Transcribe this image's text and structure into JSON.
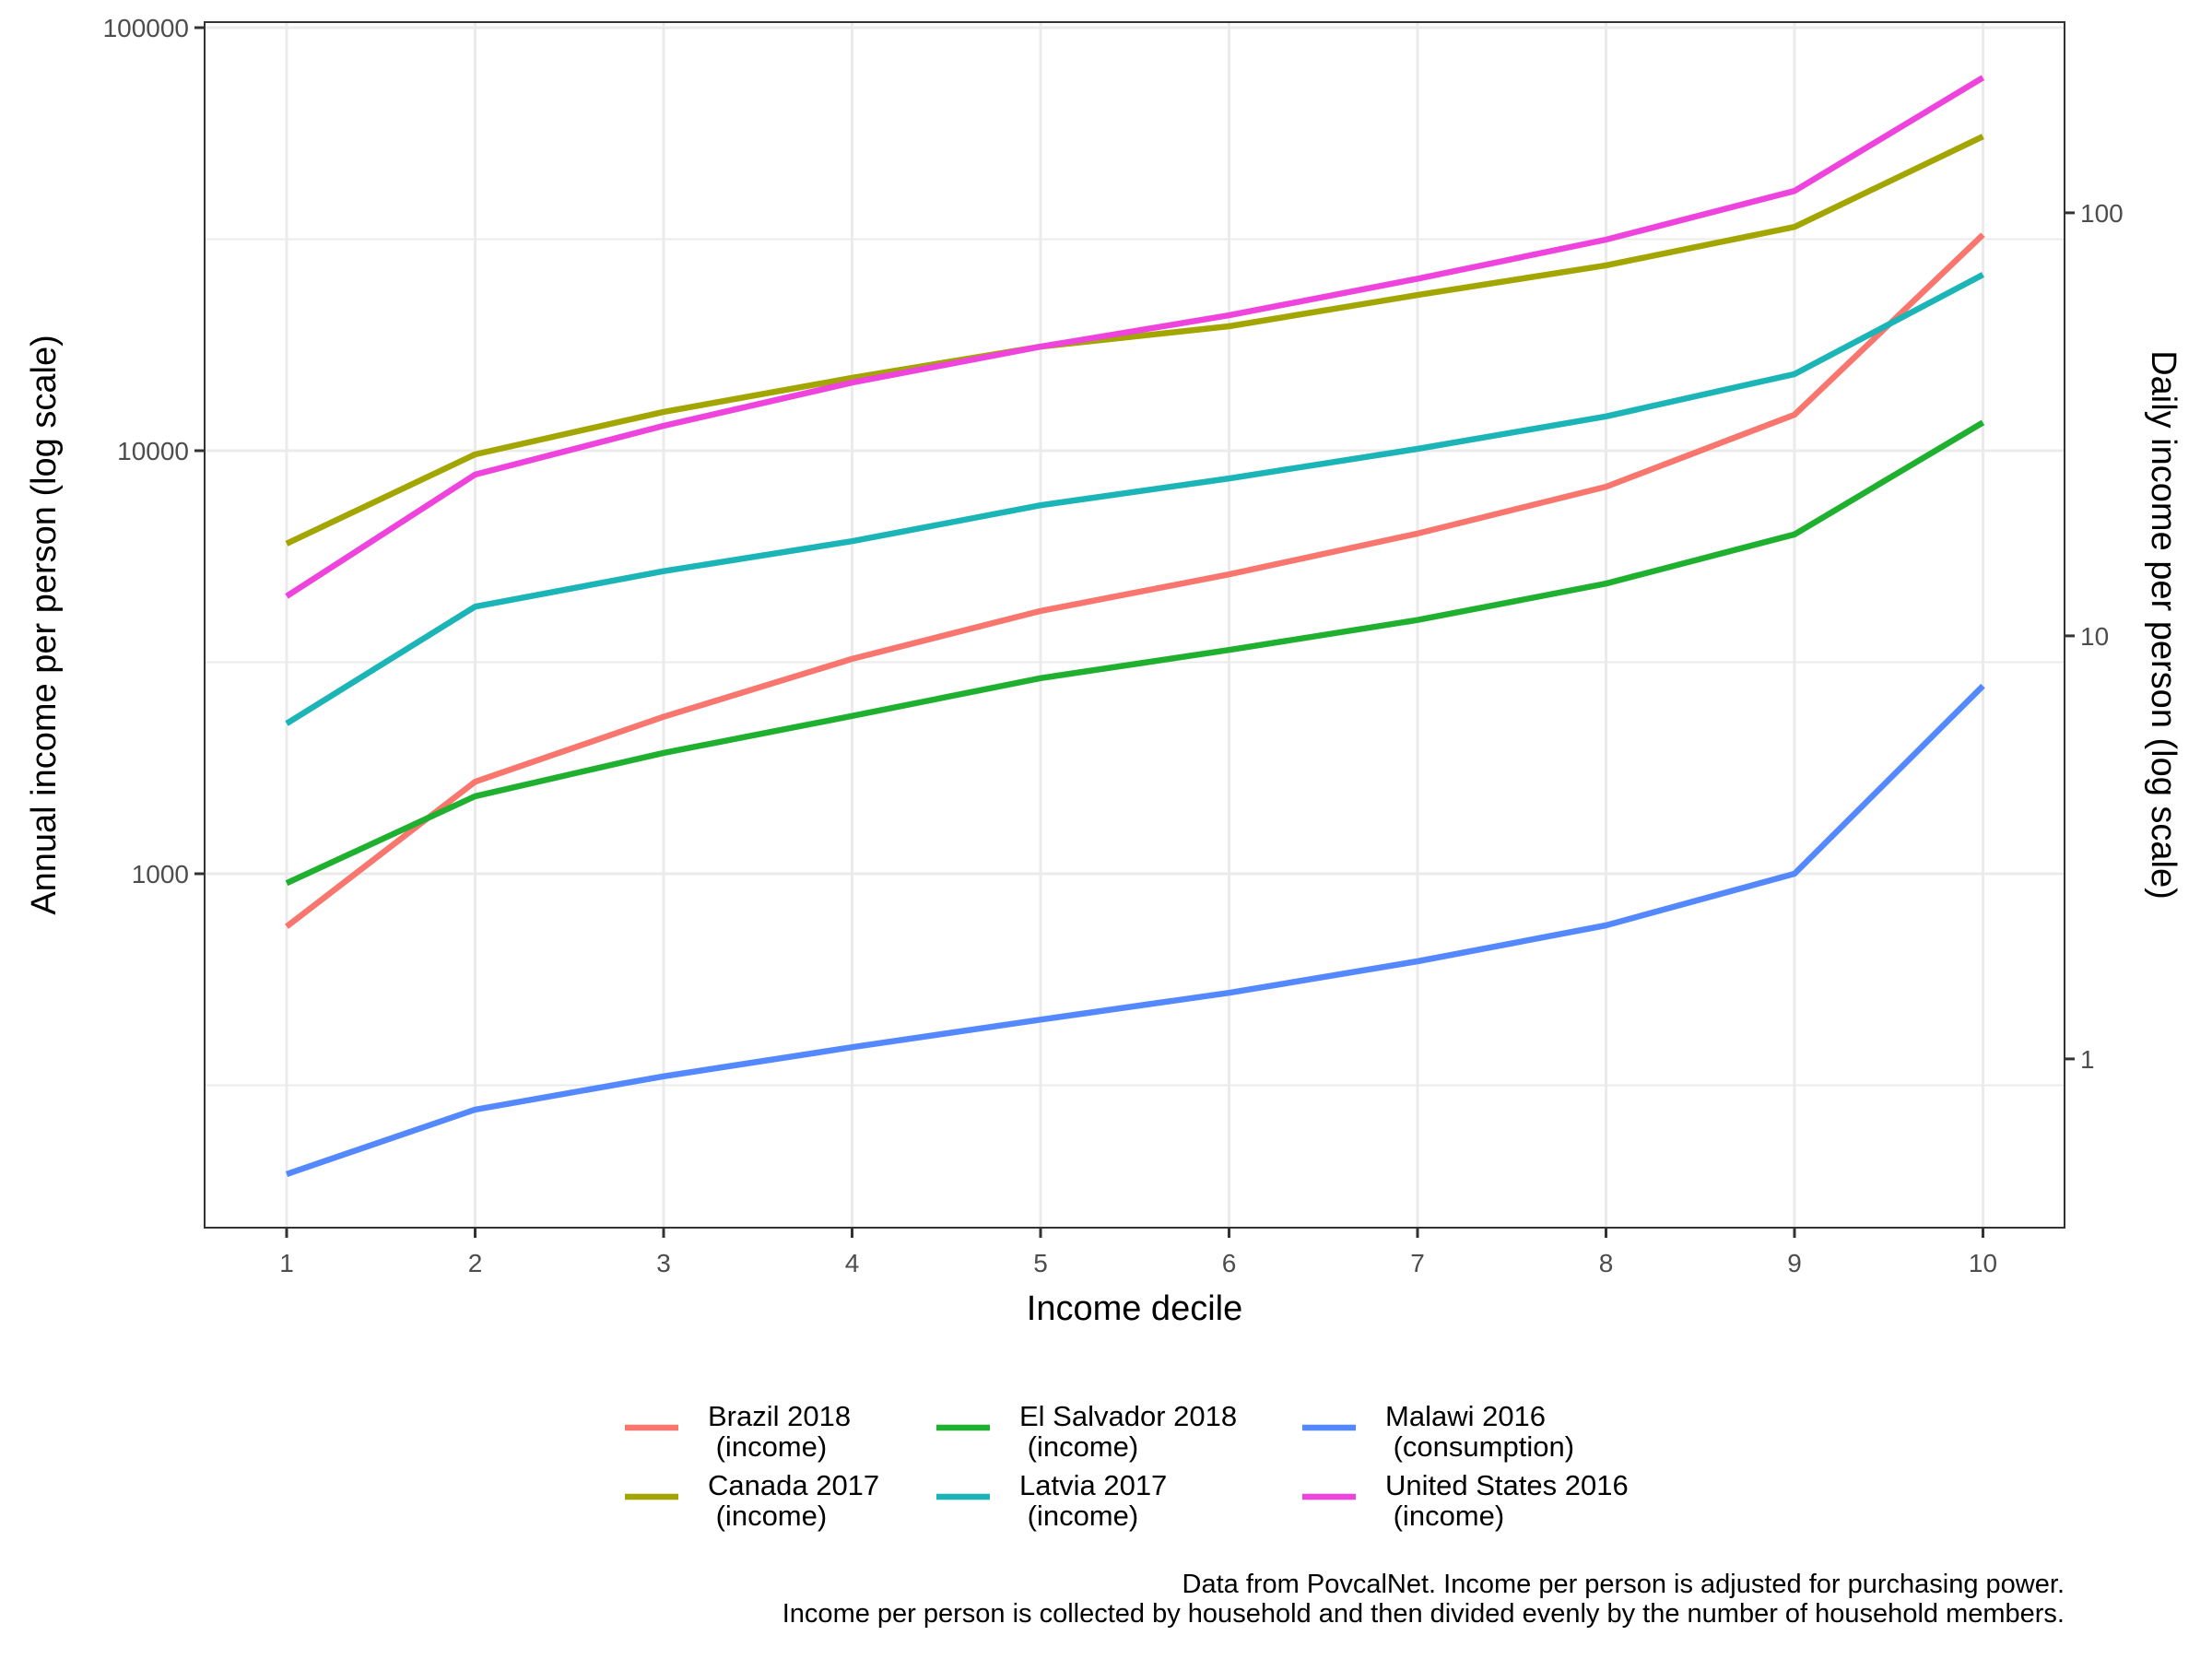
{
  "chart_data": {
    "type": "line",
    "title": "",
    "xlabel": "Income decile",
    "ylabel": "Annual income per person (log scale)",
    "ylabel_right": "Daily income per person (log scale)",
    "y_scale": "log",
    "ylim": [
      145,
      103000
    ],
    "x_ticks": [
      "1",
      "2",
      "3",
      "4",
      "5",
      "6",
      "7",
      "8",
      "9",
      "10"
    ],
    "y_ticks": [
      {
        "value": 1000,
        "label": "1000"
      },
      {
        "value": 10000,
        "label": "10000"
      },
      {
        "value": 100000,
        "label": "100000"
      }
    ],
    "y_minor_gridlines": [
      316.2,
      3162.3,
      31622.8
    ],
    "y_right_ticks": [
      {
        "value": 1,
        "label": "1"
      },
      {
        "value": 10,
        "label": "10"
      },
      {
        "value": 100,
        "label": "100"
      }
    ],
    "y_right_conversion": "annual / 365",
    "grid": true,
    "legend_position": "bottom",
    "x": [
      1,
      2,
      3,
      4,
      5,
      6,
      7,
      8,
      9,
      10
    ],
    "series": [
      {
        "name": "Brazil 2018",
        "subtitle": "(income)",
        "color": "#F8766D",
        "values": [
          750,
          1650,
          2350,
          3220,
          4180,
          5100,
          6370,
          8220,
          12160,
          32400
        ]
      },
      {
        "name": "Canada 2017",
        "subtitle": "(income)",
        "color": "#A3A500",
        "values": [
          6030,
          9800,
          12350,
          14860,
          17620,
          19680,
          23330,
          27420,
          33800,
          55300
        ]
      },
      {
        "name": "El Salvador 2018",
        "subtitle": "(income)",
        "color": "#1FB030",
        "values": [
          950,
          1525,
          1930,
          2360,
          2900,
          3380,
          3980,
          4850,
          6340,
          11660
        ]
      },
      {
        "name": "Latvia 2017",
        "subtitle": "(income)",
        "color": "#1BB5B8",
        "values": [
          2265,
          4280,
          5190,
          6110,
          7430,
          8600,
          10100,
          12050,
          15170,
          26070
        ]
      },
      {
        "name": "Malawi 2016",
        "subtitle": "(consumption)",
        "color": "#5388FF",
        "values": [
          195,
          277,
          332,
          389,
          452,
          523,
          621,
          755,
          1000,
          2780
        ]
      },
      {
        "name": "United States 2016",
        "subtitle": "(income)",
        "color": "#EE44DD",
        "values": [
          4530,
          8780,
          11450,
          14490,
          17620,
          20900,
          25500,
          31550,
          41100,
          76200
        ]
      }
    ],
    "caption": [
      "Data from PovcalNet. Income per person is adjusted for purchasing power.",
      "Income per person is collected by household and then divided evenly by the number of household members."
    ]
  }
}
